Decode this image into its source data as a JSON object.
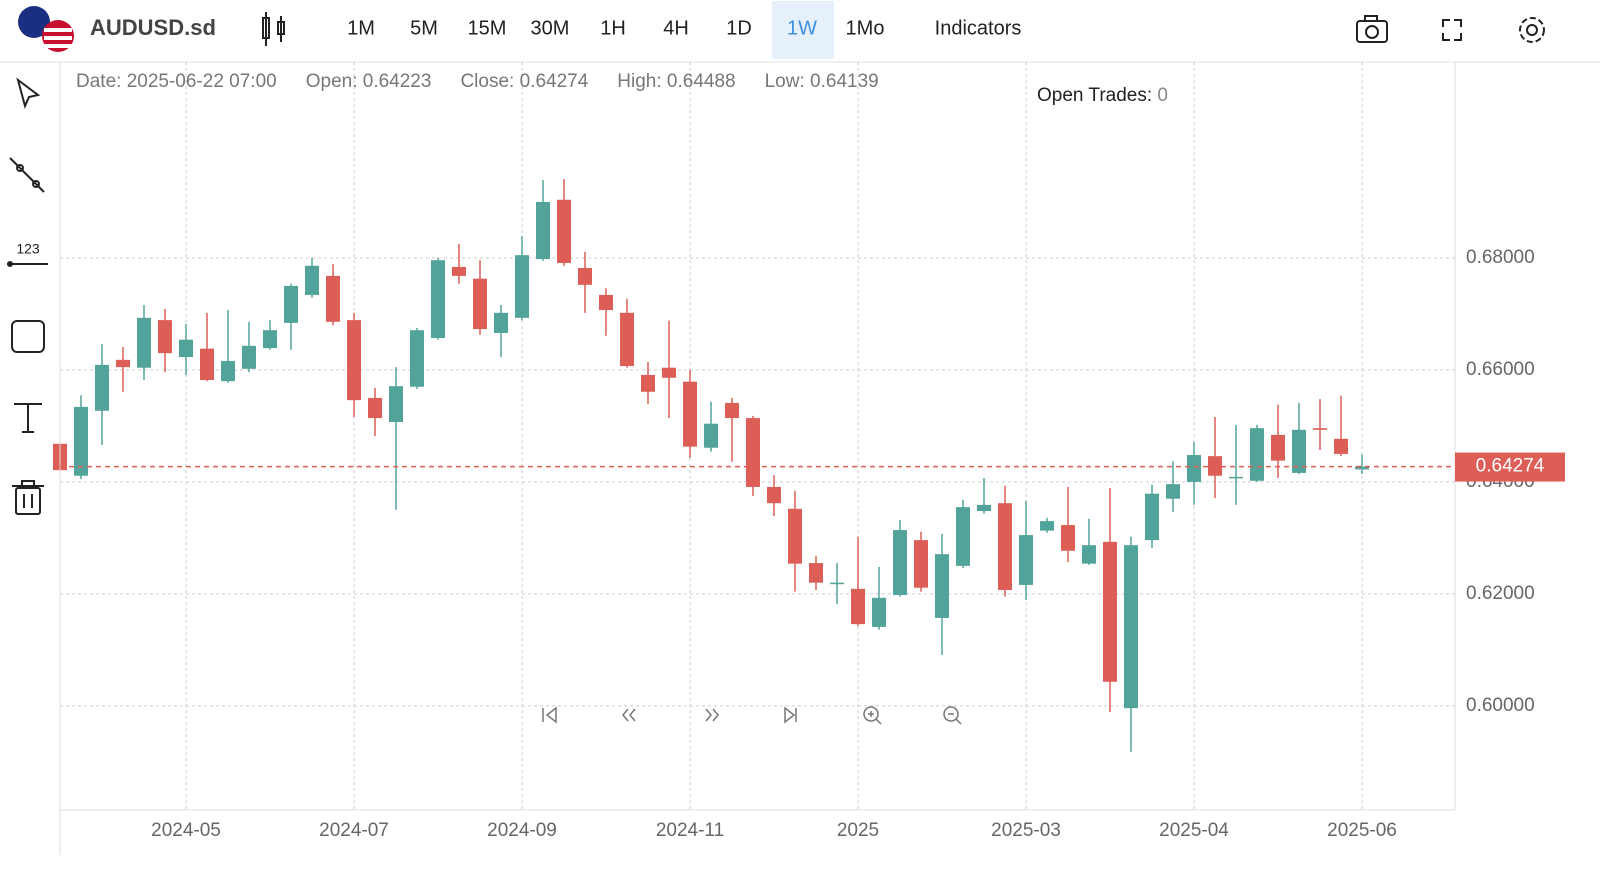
{
  "toolbar": {
    "symbol": "AUDUSD.sd",
    "timeframes": [
      "1M",
      "5M",
      "15M",
      "30M",
      "1H",
      "4H",
      "1D",
      "1W",
      "1Mo"
    ],
    "active_timeframe_index": 7,
    "indicators": "Indicators"
  },
  "info": [
    {
      "label": "Date:",
      "value": "2025-06-22 07:00"
    },
    {
      "label": "Open:",
      "value": "0.64223"
    },
    {
      "label": "Close:",
      "value": "0.64274"
    },
    {
      "label": "High:",
      "value": "0.64488"
    },
    {
      "label": "Low:",
      "value": "0.64139"
    }
  ],
  "open_trades": {
    "label": "Open Trades:",
    "value": "0"
  },
  "chart_data": {
    "type": "candlestick",
    "categories": [
      null,
      null,
      null,
      null,
      null,
      null,
      "2024-05",
      null,
      null,
      null,
      null,
      null,
      null,
      null,
      "2024-07",
      null,
      null,
      null,
      null,
      null,
      null,
      null,
      "2024-09",
      null,
      null,
      null,
      null,
      null,
      null,
      null,
      "2024-11",
      null,
      null,
      null,
      null,
      null,
      null,
      null,
      "2025",
      null,
      null,
      null,
      null,
      null,
      null,
      null,
      "2025-03",
      null,
      null,
      null,
      null,
      null,
      null,
      null,
      "2025-04",
      null,
      null,
      null,
      null,
      null,
      null,
      null,
      "2025-06"
    ],
    "open": [
      0.6468,
      0.6411,
      0.6527,
      0.6618,
      0.6604,
      0.6689,
      0.6623,
      0.6638,
      0.658,
      0.6602,
      0.6639,
      0.6684,
      0.6734,
      0.6768,
      0.6689,
      0.655,
      0.6507,
      0.657,
      0.6657,
      0.6784,
      0.6763,
      0.6666,
      0.6693,
      0.6798,
      0.6904,
      0.6782,
      0.6734,
      0.6702,
      0.6591,
      0.6604,
      0.6579,
      0.6461,
      0.6541,
      0.6514,
      0.6391,
      0.6352,
      0.6255,
      0.6218,
      0.6209,
      0.6141,
      0.6198,
      0.6296,
      0.6157,
      0.625,
      0.6348,
      0.6362,
      0.6216,
      0.6313,
      0.6323,
      0.6254,
      0.6293,
      0.5996,
      0.6296,
      0.637,
      0.64,
      0.6446,
      0.6409,
      0.6402,
      0.6484,
      0.6416,
      0.6496,
      0.6477,
      0.64223
    ],
    "high": [
      0.647,
      0.6555,
      0.6646,
      0.6641,
      0.6716,
      0.6709,
      0.6682,
      0.6702,
      0.6707,
      0.6686,
      0.6689,
      0.6754,
      0.68,
      0.6789,
      0.6702,
      0.6568,
      0.6605,
      0.6675,
      0.68,
      0.6825,
      0.6796,
      0.6716,
      0.6839,
      0.6939,
      0.6941,
      0.6811,
      0.6746,
      0.6727,
      0.6614,
      0.6688,
      0.66,
      0.6543,
      0.655,
      0.6518,
      0.6412,
      0.6384,
      0.6268,
      0.6255,
      0.6302,
      0.6248,
      0.6332,
      0.6311,
      0.6307,
      0.6368,
      0.6407,
      0.6393,
      0.6366,
      0.6336,
      0.6391,
      0.6334,
      0.6389,
      0.6302,
      0.6395,
      0.6437,
      0.6471,
      0.6516,
      0.6502,
      0.6502,
      0.6538,
      0.6541,
      0.6548,
      0.6554,
      0.64488
    ],
    "low": [
      0.642,
      0.6405,
      0.6466,
      0.6561,
      0.6582,
      0.6596,
      0.6591,
      0.658,
      0.6577,
      0.6596,
      0.6636,
      0.6636,
      0.6729,
      0.668,
      0.6516,
      0.6482,
      0.635,
      0.6566,
      0.6654,
      0.6754,
      0.6663,
      0.6623,
      0.6689,
      0.6795,
      0.6786,
      0.6702,
      0.6661,
      0.6604,
      0.6539,
      0.6514,
      0.6443,
      0.6454,
      0.6436,
      0.6375,
      0.6339,
      0.6204,
      0.6207,
      0.6182,
      0.6143,
      0.6136,
      0.6195,
      0.6204,
      0.6091,
      0.6246,
      0.6343,
      0.6195,
      0.6189,
      0.6309,
      0.6257,
      0.6252,
      0.5989,
      0.5918,
      0.6282,
      0.6346,
      0.6359,
      0.6371,
      0.6359,
      0.64,
      0.6407,
      0.6414,
      0.6457,
      0.6446,
      0.64139
    ],
    "close": [
      0.6421,
      0.6534,
      0.6609,
      0.6605,
      0.6693,
      0.663,
      0.6654,
      0.6582,
      0.6616,
      0.6643,
      0.6671,
      0.675,
      0.6786,
      0.6686,
      0.6546,
      0.6514,
      0.6571,
      0.6671,
      0.6796,
      0.6768,
      0.6673,
      0.6702,
      0.6805,
      0.69,
      0.6791,
      0.6752,
      0.6707,
      0.6607,
      0.6561,
      0.6586,
      0.6463,
      0.6504,
      0.6514,
      0.6391,
      0.6362,
      0.6254,
      0.622,
      0.622,
      0.6146,
      0.6193,
      0.6314,
      0.6211,
      0.6271,
      0.6355,
      0.6359,
      0.6207,
      0.6305,
      0.633,
      0.6277,
      0.6287,
      0.6043,
      0.6287,
      0.6379,
      0.6396,
      0.6448,
      0.6411,
      0.6409,
      0.6496,
      0.6438,
      0.6493,
      0.6493,
      0.645,
      0.64274
    ],
    "up_color": "#52a49a",
    "down_color": "#dd5e56",
    "ylim": [
      0.5814,
      0.715
    ],
    "yticks": [
      {
        "value": 0.6,
        "label": "0.60000"
      },
      {
        "value": 0.62,
        "label": "0.62000"
      },
      {
        "value": 0.64,
        "label": "0.64000"
      },
      {
        "value": 0.66,
        "label": "0.66000"
      },
      {
        "value": 0.68,
        "label": "0.68000"
      }
    ],
    "grid": true,
    "last_price_label": "0.64274"
  }
}
